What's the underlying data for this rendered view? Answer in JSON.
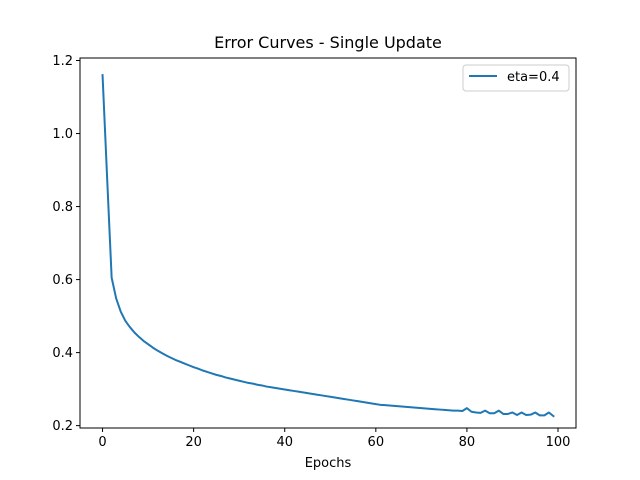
{
  "chart_data": {
    "type": "line",
    "title": "Error Curves - Single Update",
    "xlabel": "Epochs",
    "ylabel": "",
    "xlim": [
      -4.95,
      103.95
    ],
    "ylim": [
      0.1935,
      1.2069
    ],
    "xticks": [
      0,
      20,
      40,
      60,
      80,
      100
    ],
    "yticks": [
      0.2,
      0.4,
      0.6,
      0.8,
      1.0,
      1.2
    ],
    "xtick_labels": [
      "0",
      "20",
      "40",
      "60",
      "80",
      "100"
    ],
    "ytick_labels": [
      "0.2",
      "0.4",
      "0.6",
      "0.8",
      "1.0",
      "1.2"
    ],
    "grid": false,
    "legend_position": "top-right",
    "series": [
      {
        "name": "eta=0.4",
        "color": "#1f77b4",
        "x": [
          0,
          1,
          2,
          3,
          4,
          5,
          6,
          7,
          8,
          9,
          10,
          11,
          12,
          13,
          14,
          15,
          16,
          17,
          18,
          19,
          20,
          21,
          22,
          23,
          24,
          25,
          26,
          27,
          28,
          29,
          30,
          31,
          32,
          33,
          34,
          35,
          36,
          37,
          38,
          39,
          40,
          41,
          42,
          43,
          44,
          45,
          46,
          47,
          48,
          49,
          50,
          51,
          52,
          53,
          54,
          55,
          56,
          57,
          58,
          59,
          60,
          61,
          62,
          63,
          64,
          65,
          66,
          67,
          68,
          69,
          70,
          71,
          72,
          73,
          74,
          75,
          76,
          77,
          78,
          79,
          80,
          81,
          82,
          83,
          84,
          85,
          86,
          87,
          88,
          89,
          90,
          91,
          92,
          93,
          94,
          95,
          96,
          97,
          98,
          99
        ],
        "values": [
          1.16,
          0.88,
          0.605,
          0.548,
          0.512,
          0.487,
          0.47,
          0.455,
          0.443,
          0.432,
          0.423,
          0.414,
          0.406,
          0.399,
          0.392,
          0.386,
          0.38,
          0.375,
          0.37,
          0.365,
          0.36,
          0.356,
          0.351,
          0.347,
          0.343,
          0.339,
          0.336,
          0.332,
          0.329,
          0.326,
          0.323,
          0.32,
          0.317,
          0.315,
          0.312,
          0.31,
          0.307,
          0.305,
          0.303,
          0.301,
          0.299,
          0.297,
          0.295,
          0.293,
          0.291,
          0.289,
          0.287,
          0.285,
          0.283,
          0.281,
          0.279,
          0.277,
          0.275,
          0.273,
          0.271,
          0.269,
          0.267,
          0.265,
          0.263,
          0.261,
          0.259,
          0.257,
          0.256,
          0.255,
          0.254,
          0.253,
          0.252,
          0.251,
          0.25,
          0.249,
          0.248,
          0.247,
          0.246,
          0.245,
          0.244,
          0.243,
          0.242,
          0.241,
          0.241,
          0.24,
          0.248,
          0.238,
          0.236,
          0.235,
          0.241,
          0.234,
          0.234,
          0.241,
          0.232,
          0.232,
          0.236,
          0.229,
          0.236,
          0.229,
          0.23,
          0.236,
          0.228,
          0.228,
          0.236,
          0.226
        ]
      }
    ]
  }
}
